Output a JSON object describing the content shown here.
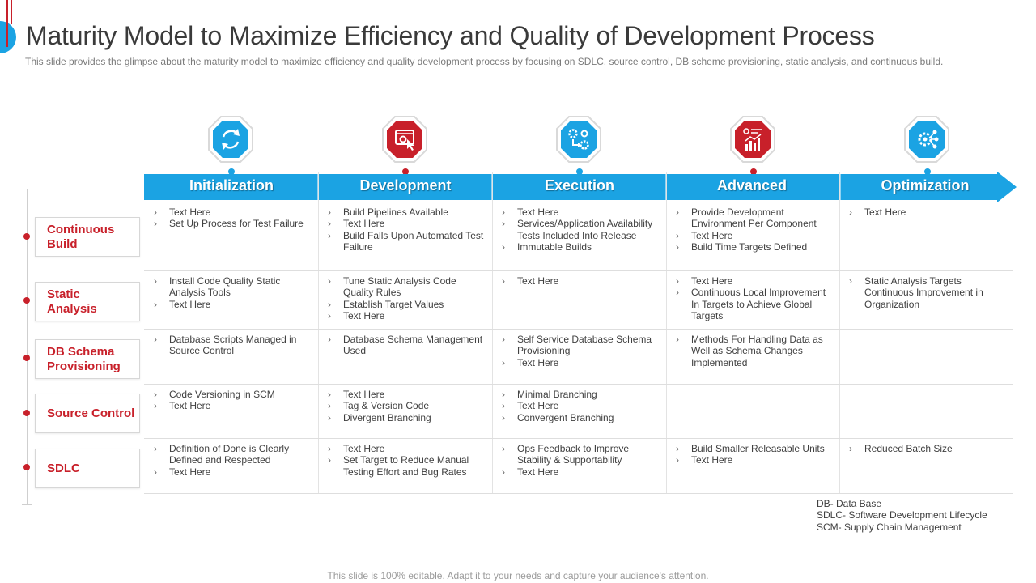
{
  "slide": {
    "title": "Maturity Model to Maximize Efficiency and Quality of Development Process",
    "subtitle": "This slide provides  the glimpse about the maturity model to maximize efficiency and quality development  process by focusing on SDLC, source control, DB scheme provisioning,  static analysis, and continuous build.",
    "footer": "This slide is 100% editable. Adapt it to your needs and capture your audience's attention."
  },
  "colors": {
    "blue": "#1ba3e3",
    "red": "#c8202a",
    "text": "#404040"
  },
  "stages": [
    {
      "label": "Initialization",
      "icon": "sync-icon",
      "color": "blue"
    },
    {
      "label": "Development",
      "icon": "click-settings-icon",
      "color": "red"
    },
    {
      "label": "Execution",
      "icon": "gears-process-icon",
      "color": "blue"
    },
    {
      "label": "Advanced",
      "icon": "analytics-chart-icon",
      "color": "red"
    },
    {
      "label": "Optimization",
      "icon": "gear-network-icon",
      "color": "blue"
    }
  ],
  "rows": [
    {
      "label": "Continuous Build",
      "cells": [
        [
          "Text Here",
          "Set Up Process for Test Failure"
        ],
        [
          "Build Pipelines Available",
          "Text Here",
          "Build Falls Upon Automated Test Failure"
        ],
        [
          "Text Here",
          "Services/Application Availability Tests Included Into Release",
          "Immutable Builds"
        ],
        [
          "Provide Development Environment Per Component",
          "Text Here",
          "Build Time Targets Defined"
        ],
        [
          "Text Here"
        ]
      ]
    },
    {
      "label": "Static Analysis",
      "cells": [
        [
          "Install Code Quality Static Analysis Tools",
          "Text Here"
        ],
        [
          "Tune Static Analysis Code Quality Rules",
          "Establish Target Values",
          "Text Here"
        ],
        [
          "Text Here"
        ],
        [
          "Text Here",
          "Continuous Local Improvement In Targets to Achieve Global Targets"
        ],
        [
          "Static Analysis Targets Continuous Improvement in Organization"
        ]
      ]
    },
    {
      "label": "DB Schema Provisioning",
      "cells": [
        [
          "Database Scripts Managed in Source Control"
        ],
        [
          "Database Schema Management Used"
        ],
        [
          "Self Service Database Schema Provisioning",
          "Text Here"
        ],
        [
          "Methods For Handling Data as Well as Schema Changes Implemented"
        ],
        []
      ]
    },
    {
      "label": "Source Control",
      "cells": [
        [
          "Code Versioning in SCM",
          "Text Here"
        ],
        [
          "Text Here",
          "Tag & Version Code",
          "Divergent Branching"
        ],
        [
          "Minimal Branching",
          "Text Here",
          "Convergent Branching"
        ],
        [],
        []
      ]
    },
    {
      "label": "SDLC",
      "cells": [
        [
          "Definition of Done is Clearly Defined and Respected",
          "Text Here"
        ],
        [
          "Text Here",
          "Set Target to Reduce Manual Testing Effort and Bug Rates"
        ],
        [
          "Ops Feedback to Improve Stability & Supportability",
          "Text Here"
        ],
        [
          "Build Smaller Releasable Units",
          "Text Here"
        ],
        [
          "Reduced Batch Size"
        ]
      ]
    }
  ],
  "legend": [
    "DB- Data Base",
    "SDLC- Software Development Lifecycle",
    "SCM- Supply Chain Management"
  ]
}
